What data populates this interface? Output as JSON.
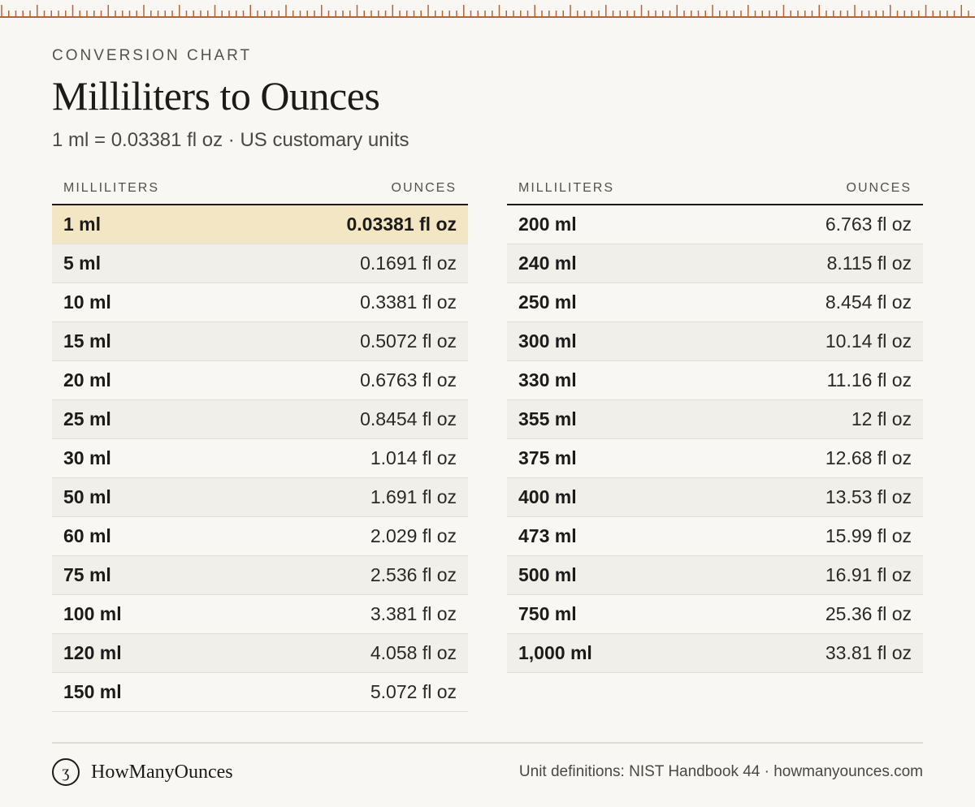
{
  "header": {
    "kicker": "CONVERSION CHART",
    "title": "Milliliters to Ounces",
    "subtitle": "1 ml = 0.03381 fl oz · US customary units"
  },
  "colors": {
    "background": "#f8f7f3",
    "accent_ruler": "#b5653a",
    "highlight_row": "#f3e6c4",
    "zebra_row": "#f1efe9"
  },
  "tables": {
    "left": {
      "col_ml": "MILLILITERS",
      "col_oz": "OUNCES",
      "rows": [
        {
          "ml": "1 ml",
          "oz": "0.03381 fl oz"
        },
        {
          "ml": "5 ml",
          "oz": "0.1691 fl oz"
        },
        {
          "ml": "10 ml",
          "oz": "0.3381 fl oz"
        },
        {
          "ml": "15 ml",
          "oz": "0.5072 fl oz"
        },
        {
          "ml": "20 ml",
          "oz": "0.6763 fl oz"
        },
        {
          "ml": "25 ml",
          "oz": "0.8454 fl oz"
        },
        {
          "ml": "30 ml",
          "oz": "1.014 fl oz"
        },
        {
          "ml": "50 ml",
          "oz": "1.691 fl oz"
        },
        {
          "ml": "60 ml",
          "oz": "2.029 fl oz"
        },
        {
          "ml": "75 ml",
          "oz": "2.536 fl oz"
        },
        {
          "ml": "100 ml",
          "oz": "3.381 fl oz"
        },
        {
          "ml": "120 ml",
          "oz": "4.058 fl oz"
        },
        {
          "ml": "150 ml",
          "oz": "5.072 fl oz"
        }
      ]
    },
    "right": {
      "col_ml": "MILLILITERS",
      "col_oz": "OUNCES",
      "rows": [
        {
          "ml": "200 ml",
          "oz": "6.763 fl oz"
        },
        {
          "ml": "240 ml",
          "oz": "8.115 fl oz"
        },
        {
          "ml": "250 ml",
          "oz": "8.454 fl oz"
        },
        {
          "ml": "300 ml",
          "oz": "10.14 fl oz"
        },
        {
          "ml": "330 ml",
          "oz": "11.16 fl oz"
        },
        {
          "ml": "355 ml",
          "oz": "12 fl oz"
        },
        {
          "ml": "375 ml",
          "oz": "12.68 fl oz"
        },
        {
          "ml": "400 ml",
          "oz": "13.53 fl oz"
        },
        {
          "ml": "473 ml",
          "oz": "15.99 fl oz"
        },
        {
          "ml": "500 ml",
          "oz": "16.91 fl oz"
        },
        {
          "ml": "750 ml",
          "oz": "25.36 fl oz"
        },
        {
          "ml": "1,000 ml",
          "oz": "33.81 fl oz"
        }
      ]
    }
  },
  "footer": {
    "brand_icon": "ʒ",
    "brand_name": "HowManyOunces",
    "source": "Unit definitions: NIST Handbook 44 · howmanyounces.com"
  }
}
